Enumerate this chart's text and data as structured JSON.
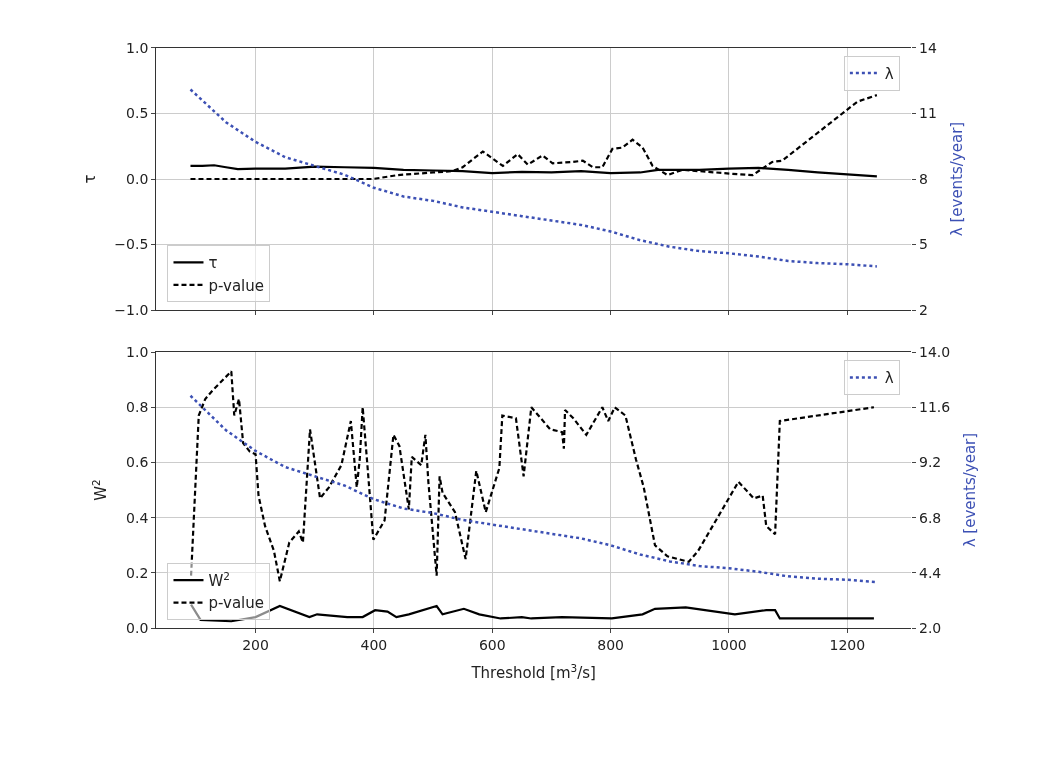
{
  "chart_data": [
    {
      "type": "line",
      "ylabel": "τ",
      "y2label": "λ [events/year]",
      "xlim": [
        32,
        1308
      ],
      "ylim": [
        -1,
        1
      ],
      "yticks": [
        {
          "value": -1,
          "label": "−1.0"
        },
        {
          "value": -0.5,
          "label": "−0.5"
        },
        {
          "value": 0,
          "label": "0.0"
        },
        {
          "value": 0.5,
          "label": "0.5"
        },
        {
          "value": 1,
          "label": "1.0"
        }
      ],
      "y2lim": [
        2,
        14
      ],
      "y2ticks": [
        2,
        5,
        8,
        11,
        14
      ],
      "xticks": [
        200,
        400,
        600,
        800,
        1000,
        1200
      ],
      "tick_labels": "y",
      "grid": true,
      "legend": "bottom left",
      "series": [
        {
          "name": "τ",
          "color": "#000000",
          "line_style": "solid",
          "x": [
            90,
            110,
            130,
            150,
            170,
            200,
            250,
            300,
            350,
            400,
            450,
            500,
            550,
            600,
            650,
            700,
            750,
            800,
            850,
            880,
            950,
            1000,
            1050,
            1100,
            1150,
            1200,
            1250
          ],
          "values": [
            0.1,
            0.1,
            0.105,
            0.09,
            0.075,
            0.08,
            0.08,
            0.095,
            0.09,
            0.085,
            0.07,
            0.065,
            0.06,
            0.045,
            0.055,
            0.05,
            0.06,
            0.045,
            0.05,
            0.07,
            0.07,
            0.08,
            0.085,
            0.07,
            0.05,
            0.035,
            0.02
          ]
        },
        {
          "name": "p-value",
          "color": "#000000",
          "line_style": "dashed",
          "x": [
            90,
            200,
            300,
            398,
            440,
            500,
            533,
            550,
            584,
            618,
            643,
            660,
            685,
            702,
            736,
            753,
            770,
            786,
            803,
            820,
            837,
            854,
            871,
            896,
            921,
            1006,
            1040,
            1073,
            1090,
            1217,
            1250
          ],
          "values": [
            0.0,
            0.0,
            0.0,
            0.0,
            0.03,
            0.05,
            0.06,
            0.09,
            0.21,
            0.1,
            0.19,
            0.11,
            0.18,
            0.12,
            0.13,
            0.14,
            0.09,
            0.09,
            0.23,
            0.24,
            0.3,
            0.24,
            0.1,
            0.03,
            0.07,
            0.04,
            0.03,
            0.13,
            0.14,
            0.59,
            0.64
          ]
        },
        {
          "name": "λ",
          "color": "#3c50b4",
          "line_style": "dotted",
          "axis": "y2",
          "x": [
            90,
            150,
            200,
            250,
            300,
            350,
            400,
            450,
            500,
            550,
            600,
            650,
            700,
            750,
            800,
            850,
            900,
            950,
            1000,
            1050,
            1100,
            1150,
            1200,
            1250
          ],
          "values": [
            12.1,
            10.6,
            9.7,
            9.0,
            8.6,
            8.2,
            7.6,
            7.2,
            7.0,
            6.7,
            6.5,
            6.3,
            6.1,
            5.9,
            5.6,
            5.2,
            4.9,
            4.7,
            4.6,
            4.45,
            4.25,
            4.15,
            4.1,
            4.0
          ]
        }
      ]
    },
    {
      "type": "line",
      "ylabel": "W$^{2}$",
      "y2label": "λ [events/year]",
      "xlabel": "Threshold [m$^{3}$/s]",
      "xlim": [
        32,
        1308
      ],
      "xticks": [
        200,
        400,
        600,
        800,
        1000,
        1200
      ],
      "ylim": [
        0,
        1
      ],
      "yticks": [
        {
          "value": 0,
          "label": "0.0"
        },
        {
          "value": 0.2,
          "label": "0.2"
        },
        {
          "value": 0.4,
          "label": "0.4"
        },
        {
          "value": 0.6,
          "label": "0.6"
        },
        {
          "value": 0.8,
          "label": "0.8"
        },
        {
          "value": 1,
          "label": "1.0"
        }
      ],
      "y2lim": [
        2,
        14
      ],
      "y2ticks": [
        {
          "value": 2,
          "label": "2.0"
        },
        {
          "value": 4.4,
          "label": "4.4"
        },
        {
          "value": 6.8,
          "label": "6.8"
        },
        {
          "value": 9.2,
          "label": "9.2"
        },
        {
          "value": 11.6,
          "label": "11.6"
        },
        {
          "value": 14,
          "label": "14.0"
        }
      ],
      "grid": true,
      "legend": "bottom left",
      "series": [
        {
          "name": "W$^{2}$",
          "color": "#000000",
          "line_style": "solid",
          "x": [
            91,
            107,
            159,
            200,
            241,
            291,
            304,
            355,
            381,
            402,
            423,
            438,
            459,
            506,
            516,
            552,
            578,
            614,
            650,
            666,
            718,
            802,
            854,
            875,
            927,
            1010,
            1063,
            1078,
            1086,
            1245
          ],
          "values": [
            0.085,
            0.03,
            0.025,
            0.04,
            0.08,
            0.04,
            0.05,
            0.04,
            0.04,
            0.065,
            0.06,
            0.04,
            0.05,
            0.08,
            0.05,
            0.07,
            0.05,
            0.035,
            0.04,
            0.035,
            0.04,
            0.035,
            0.05,
            0.07,
            0.075,
            0.05,
            0.065,
            0.065,
            0.035,
            0.035
          ]
        },
        {
          "name": "p-value",
          "color": "#000000",
          "line_style": "dashed",
          "x": [
            91,
            104,
            115,
            127,
            159,
            164,
            172,
            179,
            190,
            200,
            205,
            216,
            231,
            241,
            257,
            273,
            280,
            292,
            309,
            324,
            345,
            361,
            371,
            376,
            381,
            389,
            399,
            418,
            433,
            443,
            459,
            464,
            480,
            487,
            492,
            506,
            511,
            516,
            537,
            555,
            573,
            589,
            612,
            617,
            640,
            653,
            666,
            698,
            718,
            721,
            723,
            737,
            759,
            786,
            796,
            807,
            825,
            843,
            856,
            875,
            896,
            932,
            948,
            1016,
            1042,
            1057,
            1063,
            1078,
            1086,
            1245
          ],
          "values": [
            0.19,
            0.77,
            0.83,
            0.86,
            0.93,
            0.77,
            0.83,
            0.67,
            0.64,
            0.63,
            0.48,
            0.37,
            0.28,
            0.17,
            0.31,
            0.35,
            0.31,
            0.72,
            0.47,
            0.51,
            0.59,
            0.75,
            0.51,
            0.61,
            0.8,
            0.59,
            0.32,
            0.39,
            0.7,
            0.66,
            0.43,
            0.62,
            0.59,
            0.7,
            0.53,
            0.19,
            0.55,
            0.49,
            0.42,
            0.25,
            0.57,
            0.42,
            0.58,
            0.77,
            0.76,
            0.55,
            0.8,
            0.72,
            0.71,
            0.65,
            0.79,
            0.76,
            0.7,
            0.8,
            0.75,
            0.8,
            0.77,
            0.61,
            0.51,
            0.3,
            0.26,
            0.24,
            0.28,
            0.53,
            0.47,
            0.48,
            0.37,
            0.34,
            0.75,
            0.8
          ]
        },
        {
          "name": "λ",
          "color": "#3c50b4",
          "line_style": "dotted",
          "axis": "y2",
          "x": [
            90,
            150,
            200,
            250,
            300,
            350,
            400,
            450,
            500,
            550,
            600,
            650,
            700,
            750,
            800,
            850,
            900,
            950,
            1000,
            1050,
            1100,
            1150,
            1200,
            1250
          ],
          "values": [
            12.1,
            10.6,
            9.7,
            9.0,
            8.6,
            8.2,
            7.6,
            7.2,
            7.0,
            6.7,
            6.5,
            6.3,
            6.1,
            5.9,
            5.6,
            5.2,
            4.9,
            4.7,
            4.6,
            4.45,
            4.25,
            4.15,
            4.1,
            4.0
          ]
        }
      ]
    }
  ]
}
